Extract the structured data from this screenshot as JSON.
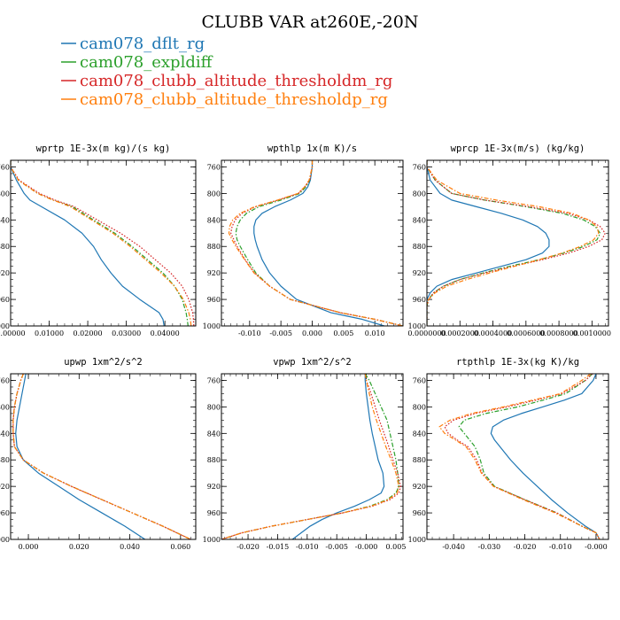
{
  "figure": {
    "title": "CLUBB VAR at260E,-20N"
  },
  "series": [
    {
      "name": "cam078_dflt_rg",
      "color": "#1f77b4",
      "dash": "solid"
    },
    {
      "name": "cam078_expldiff",
      "color": "#2ca02c",
      "dash": "dashdot"
    },
    {
      "name": "cam078_clubb_altitude_thresholdm_rg",
      "color": "#d62728",
      "dash": "dot"
    },
    {
      "name": "cam078_clubb_altitude_thresholdp_rg",
      "color": "#ff7f0e",
      "dash": "dashdot"
    }
  ],
  "chart_data": [
    {
      "type": "line",
      "title": "wprtp  1E-3x(m kg)/(s kg)",
      "xlim": [
        0,
        0.048
      ],
      "xticks": [
        "0.00000",
        "0.01000",
        "0.02000",
        "0.03000",
        "0.04000"
      ],
      "xtick_values": [
        0,
        0.01,
        0.02,
        0.03,
        0.04
      ],
      "ylim": [
        1000,
        750
      ],
      "yticks": [
        760,
        800,
        840,
        880,
        920,
        960,
        1000
      ],
      "y": [
        750,
        760,
        780,
        800,
        810,
        820,
        840,
        860,
        880,
        900,
        920,
        940,
        960,
        980,
        990,
        1000
      ],
      "series": [
        {
          "name": "cam078_dflt_rg",
          "values": [
            0.0,
            0.0,
            0.0015,
            0.0035,
            0.005,
            0.008,
            0.014,
            0.0185,
            0.0215,
            0.0235,
            0.026,
            0.029,
            0.0335,
            0.0385,
            0.0395,
            0.0398
          ]
        },
        {
          "name": "cam078_expldiff",
          "values": [
            0.0,
            0.0,
            0.002,
            0.007,
            0.011,
            0.016,
            0.0215,
            0.027,
            0.0315,
            0.0355,
            0.0395,
            0.0425,
            0.0445,
            0.0455,
            0.0458,
            0.046
          ]
        },
        {
          "name": "cam078_clubb_altitude_thresholdm_rg",
          "values": [
            0.0,
            0.0,
            0.0022,
            0.0075,
            0.0115,
            0.0165,
            0.0225,
            0.0285,
            0.0335,
            0.0375,
            0.0415,
            0.0445,
            0.0462,
            0.0472,
            0.0474,
            0.0475
          ]
        },
        {
          "name": "cam078_clubb_altitude_thresholdp_rg",
          "values": [
            0.0,
            0.0,
            0.002,
            0.007,
            0.011,
            0.0155,
            0.021,
            0.0265,
            0.031,
            0.035,
            0.039,
            0.0425,
            0.0448,
            0.0462,
            0.0466,
            0.0468
          ]
        }
      ]
    },
    {
      "type": "line",
      "title": "wpthlp  1x(m K)/s",
      "xlim": [
        -0.0145,
        0.0145
      ],
      "xticks": [
        "-0.010",
        "-0.005",
        "0.000",
        "0.005",
        "0.010"
      ],
      "xtick_values": [
        -0.01,
        -0.005,
        0.0,
        0.005,
        0.01
      ],
      "ylim": [
        1000,
        750
      ],
      "yticks": [
        760,
        800,
        840,
        880,
        920,
        960,
        1000
      ],
      "y": [
        750,
        760,
        780,
        790,
        800,
        810,
        820,
        830,
        840,
        850,
        860,
        870,
        880,
        900,
        920,
        940,
        960,
        980,
        990,
        1000
      ],
      "series": [
        {
          "name": "cam078_dflt_rg",
          "values": [
            0.0,
            0.0,
            -0.0003,
            -0.0007,
            -0.0015,
            -0.0035,
            -0.006,
            -0.008,
            -0.009,
            -0.0093,
            -0.0093,
            -0.0091,
            -0.0088,
            -0.008,
            -0.0068,
            -0.005,
            -0.0025,
            0.003,
            0.008,
            0.0115
          ]
        },
        {
          "name": "cam078_expldiff",
          "values": [
            0.0,
            0.0,
            -0.0004,
            -0.001,
            -0.002,
            -0.005,
            -0.0085,
            -0.0105,
            -0.0115,
            -0.012,
            -0.0122,
            -0.012,
            -0.0115,
            -0.0103,
            -0.009,
            -0.0068,
            -0.0035,
            0.0045,
            0.01,
            0.0145
          ]
        },
        {
          "name": "cam078_clubb_altitude_thresholdm_rg",
          "values": [
            0.0,
            0.0,
            -0.0004,
            -0.0012,
            -0.0022,
            -0.0055,
            -0.009,
            -0.0112,
            -0.0123,
            -0.0128,
            -0.013,
            -0.0125,
            -0.012,
            -0.0107,
            -0.0092,
            -0.0068,
            -0.0035,
            0.0045,
            0.01,
            0.0145
          ]
        },
        {
          "name": "cam078_clubb_altitude_thresholdp_rg",
          "values": [
            0.0,
            0.0,
            -0.0005,
            -0.0012,
            -0.0023,
            -0.0055,
            -0.0092,
            -0.0115,
            -0.0127,
            -0.0132,
            -0.0133,
            -0.0128,
            -0.0122,
            -0.0108,
            -0.0093,
            -0.0068,
            -0.0035,
            0.0045,
            0.01,
            0.0145
          ]
        }
      ]
    },
    {
      "type": "line",
      "title": "wprcp  1E-3x(m/s) (kg/kg)",
      "xlim": [
        0,
        0.0011
      ],
      "xticks": [
        "0.0000000",
        "0.0002000",
        "0.0004000",
        "0.0006000",
        "0.0008000",
        "0.0010000"
      ],
      "xtick_values": [
        0,
        0.0002,
        0.0004,
        0.0006,
        0.0008,
        0.001
      ],
      "ylim": [
        1000,
        750
      ],
      "yticks": [
        760,
        800,
        840,
        880,
        920,
        960,
        1000
      ],
      "y": [
        750,
        760,
        780,
        800,
        810,
        820,
        830,
        840,
        850,
        860,
        870,
        880,
        890,
        900,
        910,
        920,
        930,
        940,
        950,
        960,
        970,
        1000
      ],
      "series": [
        {
          "name": "cam078_dflt_rg",
          "values": [
            0.0,
            0.0,
            2e-05,
            8e-05,
            0.00015,
            0.0003,
            0.00045,
            0.00058,
            0.00067,
            0.00072,
            0.00074,
            0.00074,
            0.0007,
            0.0006,
            0.00045,
            0.0003,
            0.00015,
            6e-05,
            2e-05,
            0.0,
            0.0,
            0.0
          ]
        },
        {
          "name": "cam078_expldiff",
          "values": [
            0.0,
            0.0,
            5e-05,
            0.00015,
            0.00035,
            0.0006,
            0.00082,
            0.00095,
            0.00102,
            0.00105,
            0.00103,
            0.00095,
            0.00083,
            0.00068,
            0.0005,
            0.00034,
            0.0002,
            0.0001,
            4e-05,
            1e-05,
            0.0,
            0.0
          ]
        },
        {
          "name": "cam078_clubb_altitude_thresholdm_rg",
          "values": [
            0.0,
            0.0,
            5e-05,
            0.00015,
            0.00035,
            0.00062,
            0.00085,
            0.00098,
            0.00105,
            0.00108,
            0.00106,
            0.00098,
            0.00086,
            0.0007,
            0.00052,
            0.00035,
            0.0002,
            0.0001,
            4e-05,
            1e-05,
            0.0,
            0.0
          ]
        },
        {
          "name": "cam078_clubb_altitude_thresholdp_rg",
          "values": [
            0.0,
            0.0,
            6e-05,
            0.0002,
            0.00042,
            0.00068,
            0.00088,
            0.00098,
            0.00103,
            0.00104,
            0.00101,
            0.00093,
            0.00082,
            0.00068,
            0.00053,
            0.00038,
            0.00024,
            0.00012,
            5e-05,
            1e-05,
            0.0,
            0.0
          ]
        }
      ]
    },
    {
      "type": "line",
      "title": "upwp  1xm^2/s^2",
      "xlim": [
        -0.007,
        0.066
      ],
      "xticks": [
        "0.000",
        "0.020",
        "0.040",
        "0.060"
      ],
      "xtick_values": [
        0,
        0.02,
        0.04,
        0.06
      ],
      "ylim": [
        1000,
        750
      ],
      "yticks": [
        760,
        800,
        840,
        880,
        920,
        960,
        1000
      ],
      "y": [
        750,
        760,
        780,
        800,
        820,
        840,
        860,
        880,
        900,
        920,
        940,
        960,
        980,
        1000
      ],
      "series": [
        {
          "name": "cam078_dflt_rg",
          "values": [
            -0.001,
            -0.0015,
            -0.0025,
            -0.0035,
            -0.0045,
            -0.005,
            -0.0045,
            -0.002,
            0.004,
            0.012,
            0.02,
            0.029,
            0.038,
            0.046
          ]
        },
        {
          "name": "cam078_expldiff",
          "values": [
            -0.002,
            -0.003,
            -0.0045,
            -0.0055,
            -0.006,
            -0.006,
            -0.0055,
            -0.002,
            0.006,
            0.017,
            0.029,
            0.041,
            0.053,
            0.064
          ]
        },
        {
          "name": "cam078_clubb_altitude_thresholdm_rg",
          "values": [
            -0.002,
            -0.003,
            -0.0045,
            -0.0055,
            -0.006,
            -0.006,
            -0.0055,
            -0.002,
            0.006,
            0.017,
            0.029,
            0.041,
            0.053,
            0.064
          ]
        },
        {
          "name": "cam078_clubb_altitude_thresholdp_rg",
          "values": [
            -0.002,
            -0.003,
            -0.0045,
            -0.0055,
            -0.006,
            -0.006,
            -0.0055,
            -0.002,
            0.006,
            0.017,
            0.029,
            0.041,
            0.053,
            0.064
          ]
        }
      ]
    },
    {
      "type": "line",
      "title": "vpwp  1xm^2/s^2",
      "xlim": [
        -0.0245,
        0.0062
      ],
      "xticks": [
        "-0.020",
        "-0.015",
        "-0.010",
        "-0.005",
        "-0.000",
        "0.005"
      ],
      "xtick_values": [
        -0.02,
        -0.015,
        -0.01,
        -0.005,
        0,
        0.005
      ],
      "ylim": [
        1000,
        750
      ],
      "yticks": [
        760,
        800,
        840,
        880,
        920,
        960,
        1000
      ],
      "y": [
        750,
        760,
        780,
        800,
        820,
        840,
        860,
        880,
        900,
        920,
        930,
        940,
        950,
        960,
        970,
        980,
        990,
        1000
      ],
      "series": [
        {
          "name": "cam078_dflt_rg",
          "values": [
            -0.0002,
            -0.0002,
            0.0,
            0.0003,
            0.0006,
            0.001,
            0.0015,
            0.002,
            0.0028,
            0.003,
            0.0025,
            0.0005,
            -0.002,
            -0.005,
            -0.0075,
            -0.0095,
            -0.011,
            -0.0125
          ]
        },
        {
          "name": "cam078_expldiff",
          "values": [
            -0.0002,
            0.0005,
            0.0015,
            0.0025,
            0.0035,
            0.004,
            0.0045,
            0.005,
            0.0053,
            0.0055,
            0.005,
            0.0035,
            0.0005,
            -0.004,
            -0.01,
            -0.016,
            -0.021,
            -0.0245
          ]
        },
        {
          "name": "cam078_clubb_altitude_thresholdm_rg",
          "values": [
            -0.0002,
            0.0,
            0.0008,
            0.0015,
            0.0022,
            0.003,
            0.0038,
            0.0045,
            0.0053,
            0.0058,
            0.0055,
            0.004,
            0.001,
            -0.004,
            -0.01,
            -0.016,
            -0.021,
            -0.0245
          ]
        },
        {
          "name": "cam078_clubb_altitude_thresholdp_rg",
          "values": [
            -0.0002,
            0.0,
            0.0005,
            0.001,
            0.0017,
            0.0025,
            0.0033,
            0.0042,
            0.005,
            0.0055,
            0.0052,
            0.0037,
            0.0008,
            -0.004,
            -0.01,
            -0.016,
            -0.021,
            -0.0245
          ]
        }
      ]
    },
    {
      "type": "line",
      "title": "rtpthlp  1E-3x(kg K)/kg",
      "xlim": [
        -0.0475,
        0.0035
      ],
      "xticks": [
        "-0.040",
        "-0.030",
        "-0.020",
        "-0.010",
        "-0.000"
      ],
      "xtick_values": [
        -0.04,
        -0.03,
        -0.02,
        -0.01,
        0
      ],
      "ylim": [
        1000,
        750
      ],
      "yticks": [
        760,
        800,
        840,
        880,
        920,
        960,
        1000
      ],
      "y": [
        750,
        760,
        780,
        790,
        800,
        810,
        820,
        830,
        840,
        850,
        860,
        880,
        900,
        920,
        940,
        960,
        980,
        990,
        1000
      ],
      "series": [
        {
          "name": "cam078_dflt_rg",
          "values": [
            0.0,
            -0.0008,
            -0.004,
            -0.009,
            -0.015,
            -0.021,
            -0.026,
            -0.029,
            -0.0295,
            -0.0285,
            -0.027,
            -0.024,
            -0.0205,
            -0.0165,
            -0.0125,
            -0.008,
            -0.003,
            0.0,
            0.001
          ]
        },
        {
          "name": "cam078_expldiff",
          "values": [
            -0.001,
            -0.003,
            -0.0085,
            -0.015,
            -0.022,
            -0.031,
            -0.037,
            -0.0385,
            -0.037,
            -0.0355,
            -0.034,
            -0.0325,
            -0.0315,
            -0.0285,
            -0.02,
            -0.011,
            -0.004,
            0.0,
            0.001
          ]
        },
        {
          "name": "cam078_clubb_altitude_thresholdm_rg",
          "values": [
            -0.001,
            -0.003,
            -0.0095,
            -0.017,
            -0.025,
            -0.034,
            -0.04,
            -0.0425,
            -0.0415,
            -0.039,
            -0.036,
            -0.0335,
            -0.032,
            -0.0287,
            -0.02,
            -0.011,
            -0.004,
            0.0,
            0.001
          ]
        },
        {
          "name": "cam078_clubb_altitude_thresholdp_rg",
          "values": [
            -0.0015,
            -0.004,
            -0.01,
            -0.018,
            -0.026,
            -0.035,
            -0.041,
            -0.044,
            -0.0425,
            -0.0395,
            -0.0365,
            -0.034,
            -0.0322,
            -0.0288,
            -0.0205,
            -0.0115,
            -0.004,
            0.0,
            0.001
          ]
        }
      ]
    }
  ]
}
